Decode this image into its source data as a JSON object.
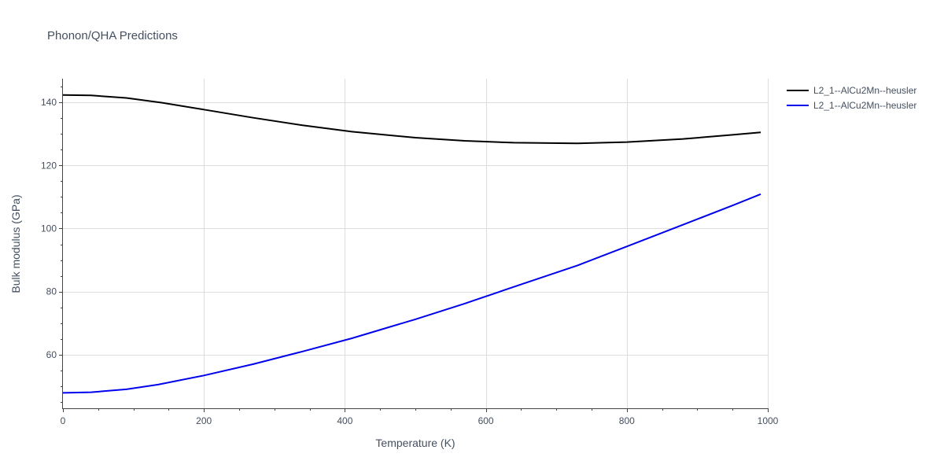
{
  "chart_data": {
    "type": "line",
    "title": "Phonon/QHA Predictions",
    "xlabel": "Temperature (K)",
    "ylabel": "Bulk modulus (GPa)",
    "xlim": [
      0,
      1000
    ],
    "ylim": [
      43,
      147.5
    ],
    "x_ticks": [
      0,
      200,
      400,
      600,
      800,
      1000
    ],
    "y_ticks": [
      60,
      80,
      100,
      120,
      140
    ],
    "x_minor_ticks": [
      50,
      100,
      150,
      250,
      300,
      350,
      450,
      500,
      550,
      650,
      700,
      750,
      850,
      900,
      950
    ],
    "y_minor_ticks": [
      45,
      50,
      55,
      65,
      70,
      75,
      85,
      90,
      95,
      105,
      110,
      115,
      125,
      130,
      135,
      145
    ],
    "grid": true,
    "legend_position": "top-right",
    "series": [
      {
        "name": "L2_1--AlCu2Mn--heusler",
        "color": "#000000",
        "x": [
          0,
          40,
          90,
          140,
          200,
          270,
          340,
          410,
          500,
          570,
          640,
          730,
          800,
          880,
          950,
          990
        ],
        "y": [
          142.3,
          142.2,
          141.4,
          139.9,
          137.7,
          135.1,
          132.7,
          130.7,
          128.8,
          127.8,
          127.2,
          127.0,
          127.4,
          128.4,
          129.7,
          130.5
        ]
      },
      {
        "name": "L2_1--AlCu2Mn--heusler",
        "color": "#0000ee",
        "x": [
          0,
          40,
          90,
          135,
          200,
          270,
          340,
          410,
          500,
          570,
          640,
          730,
          800,
          880,
          950,
          990
        ],
        "y": [
          47.9,
          48.1,
          49.0,
          50.5,
          53.4,
          57.0,
          61.0,
          65.2,
          71.2,
          76.2,
          81.5,
          88.3,
          94.3,
          101.2,
          107.3,
          110.9
        ]
      }
    ]
  }
}
